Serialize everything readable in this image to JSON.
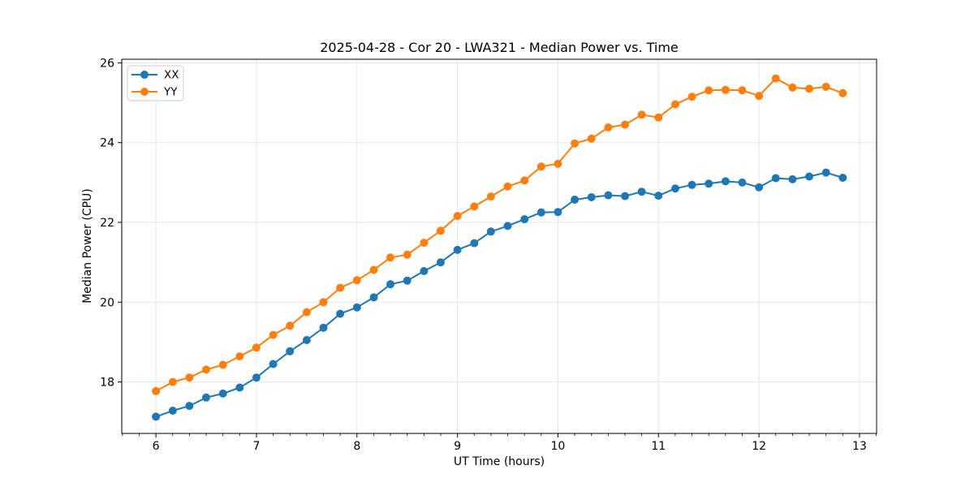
{
  "chart": {
    "title": "2025-04-28 - Cor 20 - LWA321 - Median Power vs. Time",
    "xlabel": "UT Time (hours)",
    "ylabel": "Median Power (CPU)"
  },
  "chart_data": {
    "type": "line",
    "title": "2025-04-28 - Cor 20 - LWA321 - Median Power vs. Time",
    "xlabel": "UT Time (hours)",
    "ylabel": "Median Power (CPU)",
    "xlim": [
      5.66,
      13.17
    ],
    "ylim": [
      16.71,
      26.09
    ],
    "x_ticks": [
      6,
      7,
      8,
      9,
      10,
      11,
      12,
      13
    ],
    "y_ticks": [
      18,
      20,
      22,
      24,
      26
    ],
    "x_minor_step": 0.1667,
    "grid": true,
    "grid_color": "#e6e6e6",
    "legend_position": "upper-left",
    "background": "#ffffff",
    "x": [
      6.0,
      6.167,
      6.333,
      6.5,
      6.667,
      6.833,
      7.0,
      7.167,
      7.333,
      7.5,
      7.667,
      7.833,
      8.0,
      8.167,
      8.333,
      8.5,
      8.667,
      8.833,
      9.0,
      9.167,
      9.333,
      9.5,
      9.667,
      9.833,
      10.0,
      10.167,
      10.333,
      10.5,
      10.667,
      10.833,
      11.0,
      11.167,
      11.333,
      11.5,
      11.667,
      11.833,
      12.0,
      12.167,
      12.333,
      12.5,
      12.667,
      12.833
    ],
    "series": [
      {
        "name": "XX",
        "color": "#1f77b4",
        "values": [
          17.13,
          17.28,
          17.4,
          17.61,
          17.71,
          17.86,
          18.11,
          18.45,
          18.77,
          19.05,
          19.36,
          19.71,
          19.87,
          20.12,
          20.45,
          20.54,
          20.78,
          21.0,
          21.31,
          21.48,
          21.77,
          21.91,
          22.08,
          22.25,
          22.26,
          22.57,
          22.63,
          22.68,
          22.66,
          22.77,
          22.67,
          22.85,
          22.94,
          22.97,
          23.03,
          23.0,
          22.88,
          23.11,
          23.08,
          23.15,
          23.25,
          23.12
        ]
      },
      {
        "name": "YY",
        "color": "#ff7f0e",
        "values": [
          17.77,
          18.0,
          18.11,
          18.31,
          18.43,
          18.64,
          18.86,
          19.18,
          19.41,
          19.75,
          20.0,
          20.36,
          20.55,
          20.81,
          21.12,
          21.19,
          21.49,
          21.79,
          22.16,
          22.4,
          22.65,
          22.9,
          23.05,
          23.4,
          23.47,
          23.98,
          24.1,
          24.38,
          24.45,
          24.7,
          24.63,
          24.96,
          25.15,
          25.31,
          25.32,
          25.31,
          25.17,
          25.61,
          25.38,
          25.35,
          25.4,
          25.24
        ]
      }
    ]
  }
}
